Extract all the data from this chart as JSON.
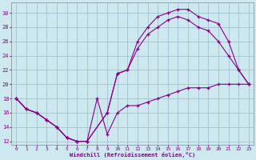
{
  "xlabel": "Windchill (Refroidissement éolien,°C)",
  "xlim": [
    -0.5,
    23.5
  ],
  "ylim": [
    11.5,
    31.5
  ],
  "yticks": [
    12,
    14,
    16,
    18,
    20,
    22,
    24,
    26,
    28,
    30
  ],
  "xticks": [
    0,
    1,
    2,
    3,
    4,
    5,
    6,
    7,
    8,
    9,
    10,
    11,
    12,
    13,
    14,
    15,
    16,
    17,
    18,
    19,
    20,
    21,
    22,
    23
  ],
  "bg_color": "#cde8ee",
  "line_color": "#880088",
  "grid_color": "#99bbcc",
  "series": [
    {
      "x": [
        0,
        1,
        2,
        3,
        4,
        5,
        6,
        7,
        9,
        10,
        11,
        12,
        13,
        14,
        15,
        16,
        17,
        18,
        19,
        20,
        21,
        22,
        23
      ],
      "y": [
        18,
        16.5,
        16,
        15,
        14,
        12.5,
        12,
        12,
        16,
        21.5,
        22,
        26,
        28,
        29.5,
        30,
        30.5,
        30.5,
        29.5,
        29,
        28.5,
        26,
        22,
        20
      ]
    },
    {
      "x": [
        0,
        1,
        2,
        3,
        4,
        5,
        6,
        7,
        9,
        10,
        11,
        12,
        13,
        14,
        15,
        16,
        17,
        18,
        19,
        20,
        21,
        22,
        23
      ],
      "y": [
        18,
        16.5,
        16,
        15,
        14,
        12.5,
        12,
        12,
        16,
        21.5,
        22,
        25,
        27,
        28,
        29,
        29.5,
        29,
        28,
        27.5,
        26,
        24,
        22,
        20
      ]
    },
    {
      "x": [
        0,
        1,
        2,
        3,
        4,
        5,
        6,
        7,
        8,
        9,
        10,
        11,
        12,
        13,
        14,
        15,
        16,
        17,
        18,
        19,
        20,
        21,
        22,
        23
      ],
      "y": [
        18,
        16.5,
        16,
        15,
        14,
        12.5,
        12,
        12,
        18,
        13,
        16,
        17,
        17,
        17.5,
        18,
        18.5,
        19,
        19.5,
        19.5,
        19.5,
        20,
        20,
        20,
        20
      ]
    }
  ]
}
